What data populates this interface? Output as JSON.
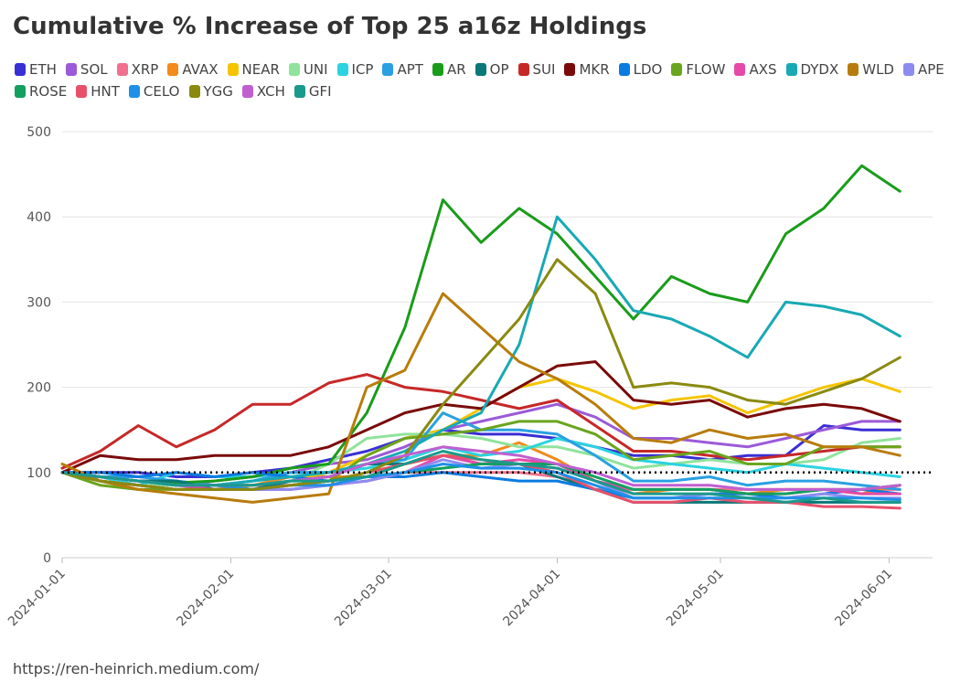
{
  "chart_data": {
    "type": "line",
    "title": "Cumulative % Increase of Top 25 a16z Holdings",
    "source": "https://ren-heinrich.medium.com/",
    "x": [
      "2024-01-01",
      "2024-01-08",
      "2024-01-15",
      "2024-01-22",
      "2024-01-29",
      "2024-02-05",
      "2024-02-12",
      "2024-02-19",
      "2024-02-26",
      "2024-03-04",
      "2024-03-11",
      "2024-03-18",
      "2024-03-25",
      "2024-04-01",
      "2024-04-08",
      "2024-04-15",
      "2024-04-22",
      "2024-04-29",
      "2024-05-06",
      "2024-05-13",
      "2024-05-20",
      "2024-05-27",
      "2024-06-03"
    ],
    "xlim": [
      "2024-01-01",
      "2024-06-09"
    ],
    "xticks": [
      "2024-01-01",
      "2024-02-01",
      "2024-03-01",
      "2024-04-01",
      "2024-05-01",
      "2024-06-01"
    ],
    "ylim": [
      0,
      500
    ],
    "yticks": [
      0,
      100,
      200,
      300,
      400,
      500
    ],
    "grid": true,
    "reference_line": 100,
    "series": [
      {
        "name": "ETH",
        "color": "#3a2fd4",
        "values": [
          100,
          100,
          100,
          95,
          95,
          100,
          105,
          115,
          125,
          140,
          150,
          145,
          145,
          140,
          130,
          120,
          120,
          115,
          120,
          120,
          155,
          150,
          150
        ]
      },
      {
        "name": "SOL",
        "color": "#9b5ad8",
        "values": [
          100,
          95,
          90,
          85,
          90,
          95,
          100,
          110,
          115,
          130,
          150,
          160,
          170,
          180,
          165,
          140,
          140,
          135,
          130,
          140,
          150,
          160,
          160
        ]
      },
      {
        "name": "XRP",
        "color": "#f0708e",
        "values": [
          100,
          95,
          90,
          90,
          85,
          85,
          85,
          90,
          95,
          100,
          100,
          100,
          100,
          95,
          80,
          80,
          80,
          80,
          80,
          80,
          80,
          80,
          80
        ]
      },
      {
        "name": "AVAX",
        "color": "#f28a1c",
        "values": [
          100,
          95,
          85,
          80,
          80,
          85,
          95,
          95,
          95,
          110,
          120,
          120,
          135,
          115,
          90,
          75,
          80,
          80,
          75,
          80,
          80,
          75,
          85
        ]
      },
      {
        "name": "NEAR",
        "color": "#f5c400",
        "values": [
          100,
          95,
          90,
          85,
          85,
          85,
          90,
          100,
          120,
          140,
          150,
          175,
          200,
          210,
          195,
          175,
          185,
          190,
          170,
          185,
          200,
          210,
          195
        ]
      },
      {
        "name": "UNI",
        "color": "#90e39c",
        "values": [
          100,
          90,
          85,
          85,
          85,
          80,
          90,
          110,
          140,
          145,
          145,
          140,
          130,
          130,
          120,
          105,
          110,
          115,
          110,
          110,
          115,
          135,
          140
        ]
      },
      {
        "name": "ICP",
        "color": "#2bd3e0",
        "values": [
          100,
          95,
          85,
          100,
          95,
          95,
          100,
          100,
          105,
          115,
          130,
          120,
          125,
          140,
          130,
          115,
          110,
          105,
          100,
          110,
          105,
          100,
          95
        ]
      },
      {
        "name": "APT",
        "color": "#2aa0e2",
        "values": [
          100,
          95,
          95,
          90,
          85,
          90,
          100,
          100,
          110,
          115,
          170,
          150,
          150,
          145,
          120,
          90,
          90,
          95,
          85,
          90,
          90,
          85,
          80
        ]
      },
      {
        "name": "AR",
        "color": "#1a9c1a",
        "values": [
          100,
          95,
          90,
          88,
          90,
          95,
          105,
          110,
          170,
          270,
          420,
          370,
          410,
          380,
          330,
          280,
          330,
          310,
          300,
          380,
          410,
          460,
          430
        ]
      },
      {
        "name": "OP",
        "color": "#0b7878",
        "values": [
          100,
          95,
          90,
          90,
          80,
          80,
          90,
          95,
          110,
          110,
          120,
          110,
          110,
          95,
          80,
          65,
          65,
          65,
          65,
          65,
          65,
          65,
          65
        ]
      },
      {
        "name": "SUI",
        "color": "#c62828",
        "values": [
          105,
          125,
          155,
          130,
          150,
          180,
          180,
          205,
          215,
          200,
          195,
          185,
          175,
          185,
          155,
          125,
          125,
          120,
          115,
          120,
          125,
          130,
          130
        ]
      },
      {
        "name": "MKR",
        "color": "#7a0a0a",
        "values": [
          100,
          120,
          115,
          115,
          120,
          120,
          120,
          130,
          150,
          170,
          180,
          175,
          200,
          225,
          230,
          185,
          180,
          185,
          165,
          175,
          180,
          175,
          160
        ]
      },
      {
        "name": "LDO",
        "color": "#0a7be0",
        "values": [
          100,
          100,
          95,
          100,
          95,
          100,
          95,
          90,
          95,
          95,
          100,
          95,
          90,
          90,
          80,
          70,
          70,
          75,
          75,
          70,
          75,
          80,
          75
        ]
      },
      {
        "name": "FLOW",
        "color": "#6aa51e",
        "values": [
          100,
          85,
          80,
          80,
          80,
          80,
          85,
          90,
          120,
          140,
          145,
          150,
          160,
          160,
          145,
          115,
          120,
          125,
          110,
          110,
          130,
          130,
          130
        ]
      },
      {
        "name": "AXS",
        "color": "#e54aa8",
        "values": [
          100,
          95,
          90,
          85,
          80,
          80,
          80,
          85,
          90,
          100,
          120,
          110,
          115,
          110,
          90,
          80,
          80,
          80,
          75,
          75,
          80,
          75,
          75
        ]
      },
      {
        "name": "DYDX",
        "color": "#18a9b5",
        "values": [
          100,
          95,
          90,
          85,
          85,
          90,
          95,
          100,
          110,
          125,
          150,
          170,
          250,
          400,
          350,
          290,
          280,
          260,
          235,
          300,
          295,
          285,
          260
        ]
      },
      {
        "name": "WLD",
        "color": "#b87c0c",
        "values": [
          110,
          90,
          80,
          75,
          70,
          65,
          70,
          75,
          200,
          220,
          310,
          270,
          230,
          210,
          180,
          140,
          135,
          150,
          140,
          145,
          130,
          130,
          120
        ]
      },
      {
        "name": "APE",
        "color": "#8c8cf0",
        "values": [
          100,
          95,
          90,
          85,
          85,
          80,
          80,
          85,
          90,
          100,
          115,
          105,
          110,
          105,
          90,
          70,
          70,
          75,
          70,
          70,
          75,
          70,
          70
        ]
      },
      {
        "name": "ROSE",
        "color": "#12a060",
        "values": [
          100,
          90,
          85,
          80,
          80,
          80,
          85,
          90,
          95,
          100,
          105,
          110,
          110,
          110,
          95,
          80,
          80,
          80,
          75,
          75,
          80,
          80,
          85
        ]
      },
      {
        "name": "HNT",
        "color": "#e8506a",
        "values": [
          100,
          90,
          85,
          80,
          80,
          80,
          85,
          90,
          100,
          110,
          120,
          115,
          110,
          100,
          80,
          65,
          65,
          70,
          65,
          65,
          60,
          60,
          58
        ]
      },
      {
        "name": "CELO",
        "color": "#1e90e8",
        "values": [
          100,
          95,
          90,
          85,
          85,
          80,
          85,
          85,
          95,
          100,
          110,
          105,
          105,
          100,
          85,
          70,
          70,
          70,
          70,
          70,
          70,
          70,
          68
        ]
      },
      {
        "name": "YGG",
        "color": "#8a8a10",
        "values": [
          100,
          90,
          85,
          80,
          80,
          80,
          85,
          90,
          100,
          120,
          180,
          230,
          280,
          350,
          310,
          200,
          205,
          200,
          185,
          180,
          195,
          210,
          235
        ]
      },
      {
        "name": "XCH",
        "color": "#c060d0",
        "values": [
          100,
          95,
          90,
          85,
          85,
          85,
          90,
          95,
          110,
          120,
          130,
          125,
          120,
          110,
          100,
          85,
          85,
          85,
          80,
          80,
          80,
          80,
          85
        ]
      },
      {
        "name": "GFI",
        "color": "#1a9a8c",
        "values": [
          100,
          95,
          90,
          85,
          85,
          85,
          90,
          90,
          95,
          110,
          125,
          115,
          110,
          105,
          90,
          75,
          75,
          75,
          70,
          65,
          70,
          65,
          65
        ]
      }
    ]
  }
}
